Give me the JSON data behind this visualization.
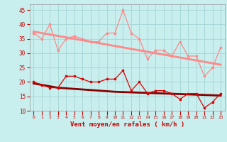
{
  "x": [
    0,
    1,
    2,
    3,
    4,
    5,
    6,
    7,
    8,
    9,
    10,
    11,
    12,
    13,
    14,
    15,
    16,
    17,
    18,
    19,
    20,
    21,
    22,
    23
  ],
  "rafales_data": [
    37,
    35,
    40,
    31,
    35,
    36,
    35,
    34,
    34,
    37,
    37,
    45,
    37,
    35,
    28,
    31,
    31,
    29,
    34,
    29,
    29,
    22,
    25,
    32
  ],
  "rafales_trend": [
    37.5,
    37.0,
    36.5,
    36.0,
    35.5,
    35.0,
    34.5,
    34.0,
    33.5,
    33.0,
    32.5,
    32.0,
    31.5,
    31.0,
    30.5,
    30.0,
    29.5,
    29.0,
    28.5,
    28.0,
    27.5,
    27.0,
    26.5,
    26.0
  ],
  "vent_data": [
    20,
    19,
    18,
    18,
    22,
    22,
    21,
    20,
    20,
    21,
    21,
    24,
    17,
    20,
    16,
    17,
    17,
    16,
    14,
    16,
    16,
    11,
    13,
    16
  ],
  "vent_trend": [
    19.5,
    19.0,
    18.5,
    18.0,
    17.8,
    17.6,
    17.4,
    17.2,
    17.0,
    16.8,
    16.6,
    16.5,
    16.4,
    16.3,
    16.2,
    16.1,
    16.0,
    15.9,
    15.8,
    15.7,
    15.6,
    15.5,
    15.4,
    15.3
  ],
  "bg_color": "#c8eeee",
  "grid_color": "#a8d8d8",
  "line_rafales_color": "#ff8888",
  "line_vent_color": "#dd0000",
  "trend_rafales_color": "#ff8888",
  "trend_vent_color": "#880000",
  "tick_color": "#cc0000",
  "label_color": "#cc0000",
  "xlabel": "Vent moyen/en rafales ( km/h )",
  "ylim": [
    10,
    47
  ],
  "yticks": [
    10,
    15,
    20,
    25,
    30,
    35,
    40,
    45
  ],
  "xtick_fontsize": 4.5,
  "ytick_fontsize": 5.5,
  "xlabel_fontsize": 6.5
}
